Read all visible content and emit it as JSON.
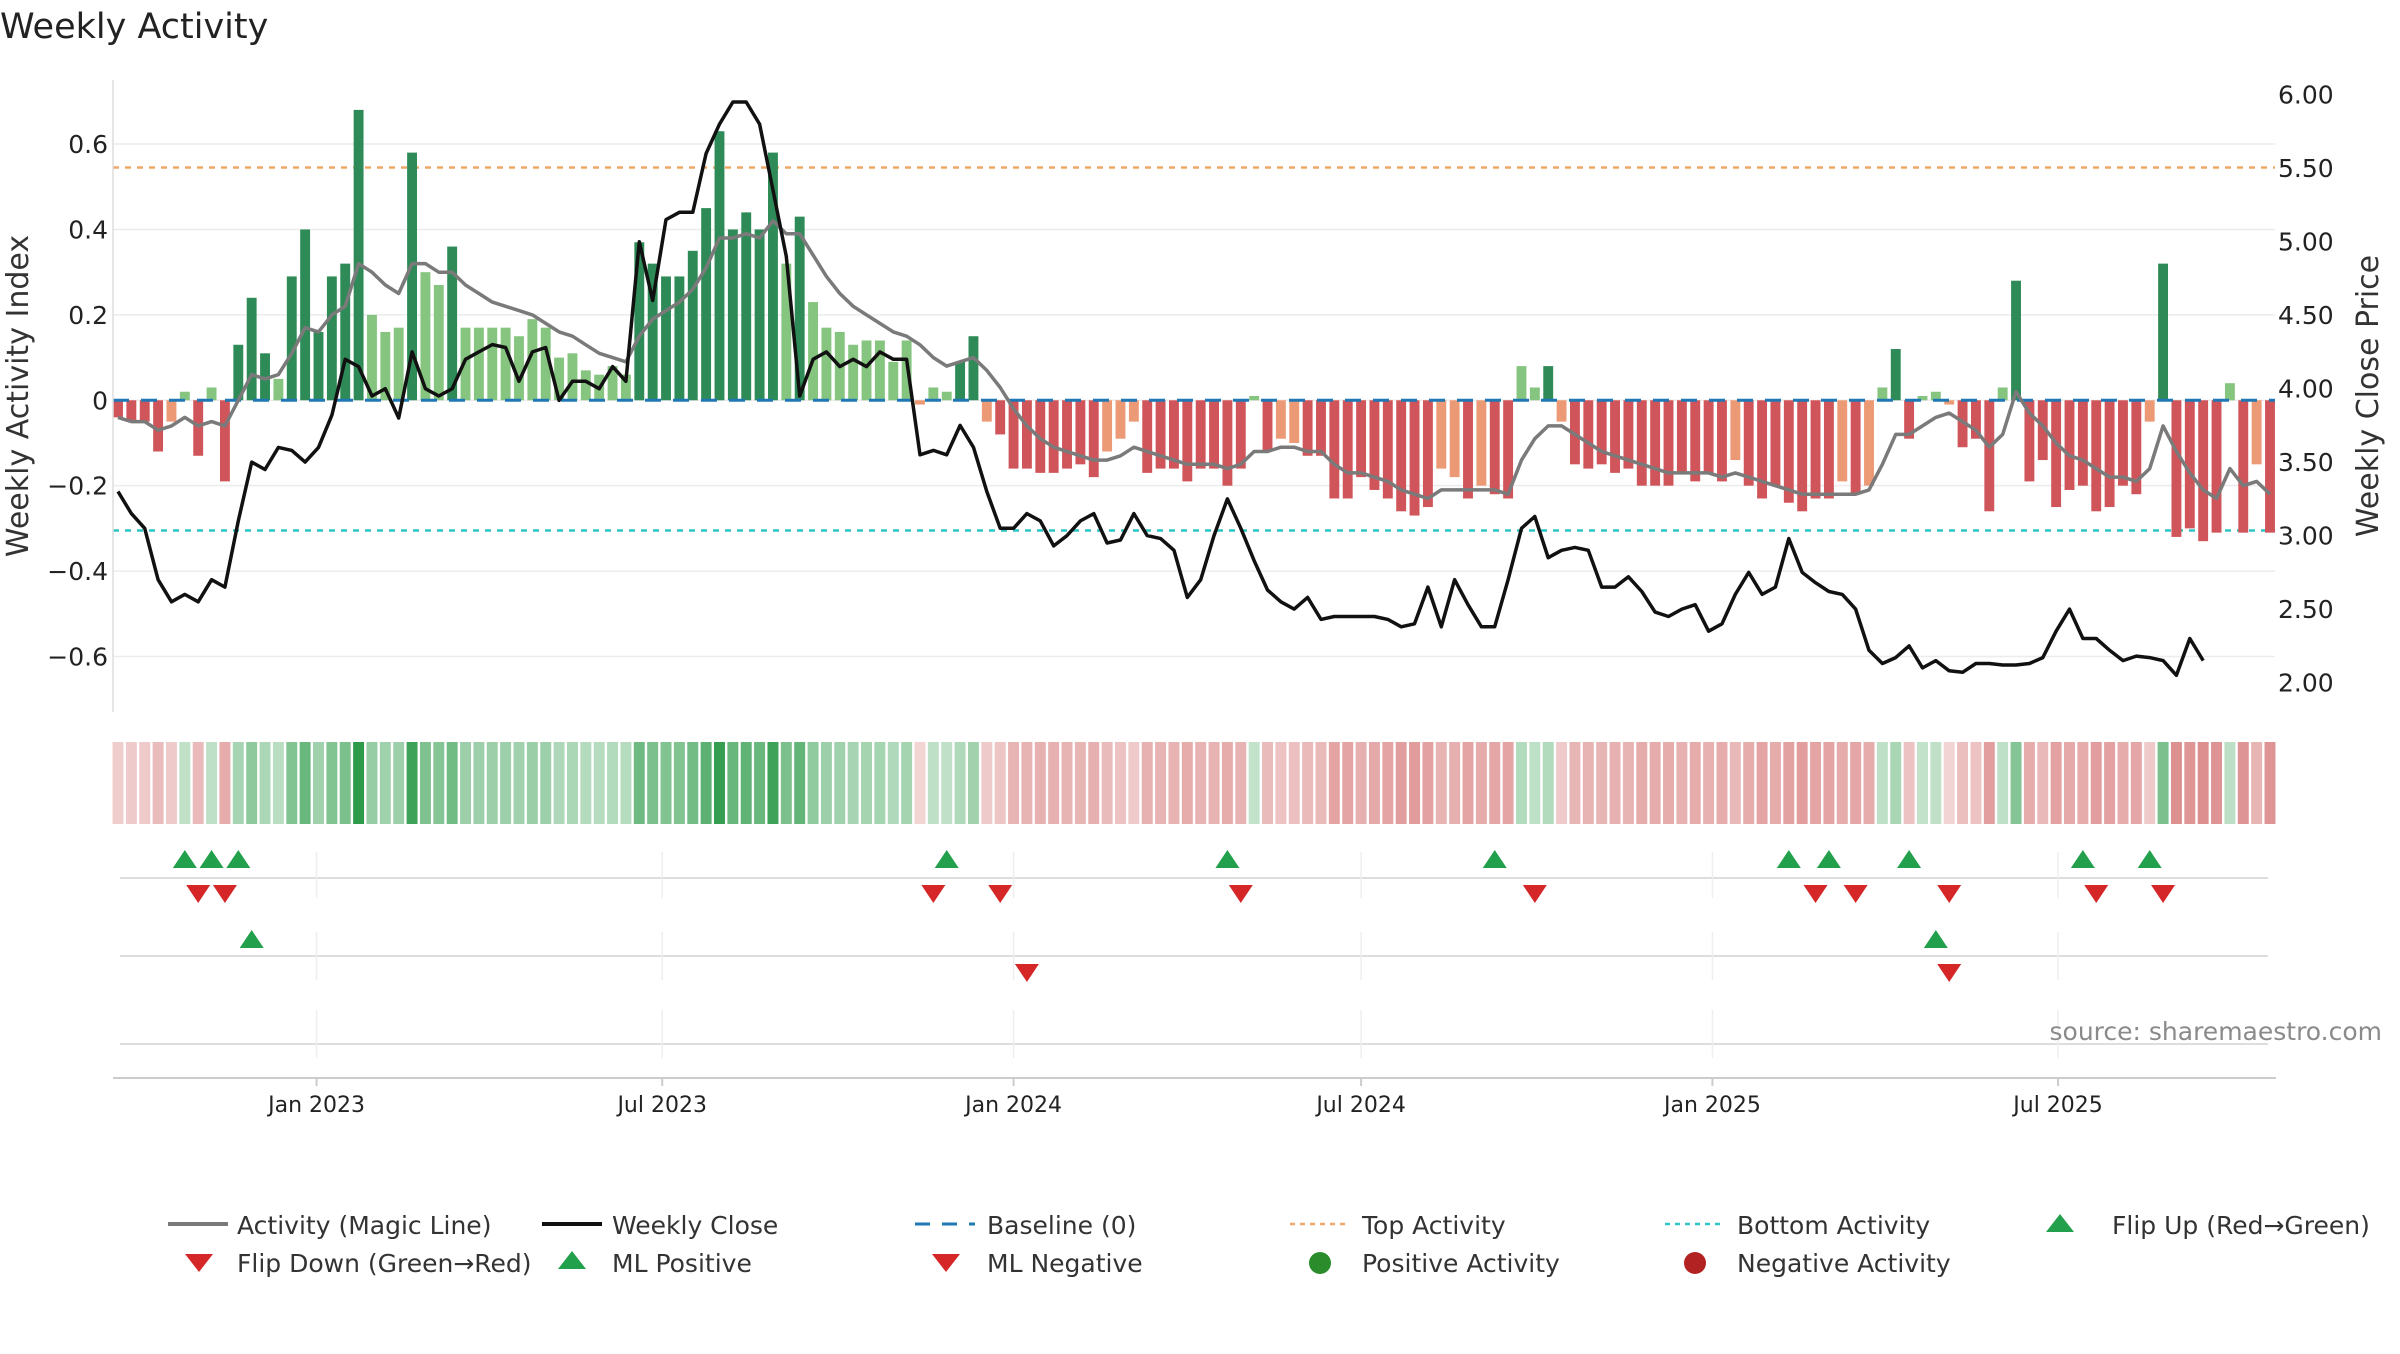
{
  "title": "Weekly Activity",
  "source": "source: sharemaestro.com",
  "colors": {
    "pos_strong": "#2e8b57",
    "pos_light": "#86c57f",
    "neg_strong": "#d0555a",
    "neg_light": "#ec9a76",
    "magic": "#7a7a7a",
    "close": "#111111",
    "baseline": "#1f77b4",
    "top": "#f0a868",
    "bottom": "#2ec4c4",
    "up": "#22a04b",
    "down": "#d62728"
  },
  "chart_data": {
    "type": "bar+line",
    "title": "Weekly Activity",
    "ylabel_left": "Weekly Activity Index",
    "ylabel_right": "Weekly Close Price",
    "ylim_left": [
      -0.73,
      0.75
    ],
    "yticks_left": [
      0.6,
      0.4,
      0.2,
      0,
      -0.2,
      -0.4,
      -0.6
    ],
    "ytick_labels_left": [
      "0.6",
      "0.4",
      "0.2",
      "0",
      "−0.2",
      "−0.4",
      "−0.6"
    ],
    "ylim_right": [
      1.8,
      6.1
    ],
    "yticks_right": [
      6.0,
      5.5,
      5.0,
      4.5,
      4.0,
      3.5,
      3.0,
      2.5,
      2.0
    ],
    "ytick_labels_right": [
      "6.00",
      "5.50",
      "5.00",
      "4.50",
      "4.00",
      "3.50",
      "3.00",
      "2.50",
      "2.00"
    ],
    "x_start": "2022-09-19",
    "x_step_days": 7,
    "x_ticks": [
      {
        "date": "2023-01-01",
        "label": "Jan 2023"
      },
      {
        "date": "2023-07-01",
        "label": "Jul 2023"
      },
      {
        "date": "2024-01-01",
        "label": "Jan 2024"
      },
      {
        "date": "2024-07-01",
        "label": "Jul 2024"
      },
      {
        "date": "2025-01-01",
        "label": "Jan 2025"
      },
      {
        "date": "2025-07-01",
        "label": "Jul 2025"
      }
    ],
    "top_activity": 0.545,
    "bottom_activity": -0.305,
    "baseline": 0,
    "activity": [
      -0.04,
      -0.05,
      -0.05,
      -0.12,
      -0.05,
      0.02,
      -0.13,
      0.03,
      -0.19,
      0.13,
      0.24,
      0.11,
      0.05,
      0.29,
      0.4,
      0.16,
      0.29,
      0.32,
      0.68,
      0.2,
      0.16,
      0.17,
      0.58,
      0.3,
      0.27,
      0.36,
      0.17,
      0.17,
      0.17,
      0.17,
      0.15,
      0.19,
      0.17,
      0.1,
      0.11,
      0.07,
      0.06,
      0.08,
      0.06,
      0.37,
      0.32,
      0.29,
      0.29,
      0.35,
      0.45,
      0.63,
      0.4,
      0.44,
      0.4,
      0.58,
      0.32,
      0.43,
      0.23,
      0.17,
      0.16,
      0.13,
      0.14,
      0.14,
      0.09,
      0.14,
      -0.01,
      0.03,
      0.02,
      0.09,
      0.15,
      -0.05,
      -0.08,
      -0.16,
      -0.16,
      -0.17,
      -0.17,
      -0.16,
      -0.15,
      -0.18,
      -0.12,
      -0.09,
      -0.05,
      -0.17,
      -0.16,
      -0.16,
      -0.19,
      -0.16,
      -0.16,
      -0.2,
      -0.16,
      0.01,
      -0.12,
      -0.09,
      -0.1,
      -0.13,
      -0.13,
      -0.23,
      -0.23,
      -0.18,
      -0.21,
      -0.23,
      -0.26,
      -0.27,
      -0.25,
      -0.16,
      -0.18,
      -0.23,
      -0.2,
      -0.22,
      -0.23,
      0.08,
      0.03,
      0.08,
      -0.05,
      -0.15,
      -0.16,
      -0.15,
      -0.17,
      -0.16,
      -0.2,
      -0.2,
      -0.2,
      -0.17,
      -0.19,
      -0.17,
      -0.19,
      -0.14,
      -0.2,
      -0.23,
      -0.2,
      -0.24,
      -0.26,
      -0.23,
      -0.23,
      -0.19,
      -0.22,
      -0.2,
      0.03,
      0.12,
      -0.09,
      0.01,
      0.02,
      -0.01,
      -0.11,
      -0.09,
      -0.26,
      0.03,
      0.28,
      -0.19,
      -0.14,
      -0.25,
      -0.21,
      -0.2,
      -0.26,
      -0.25,
      -0.2,
      -0.22,
      -0.05,
      0.32,
      -0.32,
      -0.3,
      -0.33,
      -0.31,
      0.04,
      -0.31,
      -0.15,
      -0.31
    ],
    "magic_line": [
      -0.04,
      -0.05,
      -0.05,
      -0.07,
      -0.06,
      -0.04,
      -0.06,
      -0.05,
      -0.06,
      0.0,
      0.06,
      0.05,
      0.06,
      0.11,
      0.17,
      0.16,
      0.2,
      0.22,
      0.32,
      0.3,
      0.27,
      0.25,
      0.32,
      0.32,
      0.3,
      0.3,
      0.27,
      0.25,
      0.23,
      0.22,
      0.21,
      0.2,
      0.18,
      0.16,
      0.15,
      0.13,
      0.11,
      0.1,
      0.09,
      0.15,
      0.19,
      0.21,
      0.23,
      0.26,
      0.31,
      0.38,
      0.38,
      0.39,
      0.38,
      0.42,
      0.39,
      0.39,
      0.34,
      0.29,
      0.25,
      0.22,
      0.2,
      0.18,
      0.16,
      0.15,
      0.13,
      0.1,
      0.08,
      0.09,
      0.1,
      0.07,
      0.03,
      -0.02,
      -0.06,
      -0.09,
      -0.11,
      -0.12,
      -0.13,
      -0.14,
      -0.14,
      -0.13,
      -0.11,
      -0.12,
      -0.13,
      -0.14,
      -0.15,
      -0.15,
      -0.15,
      -0.16,
      -0.15,
      -0.12,
      -0.12,
      -0.11,
      -0.11,
      -0.12,
      -0.12,
      -0.15,
      -0.17,
      -0.17,
      -0.18,
      -0.19,
      -0.21,
      -0.22,
      -0.23,
      -0.21,
      -0.21,
      -0.21,
      -0.21,
      -0.21,
      -0.22,
      -0.14,
      -0.09,
      -0.06,
      -0.06,
      -0.08,
      -0.1,
      -0.12,
      -0.13,
      -0.14,
      -0.15,
      -0.16,
      -0.17,
      -0.17,
      -0.17,
      -0.17,
      -0.18,
      -0.17,
      -0.18,
      -0.19,
      -0.2,
      -0.21,
      -0.22,
      -0.22,
      -0.22,
      -0.22,
      -0.22,
      -0.21,
      -0.15,
      -0.08,
      -0.08,
      -0.06,
      -0.04,
      -0.03,
      -0.05,
      -0.07,
      -0.11,
      -0.08,
      0.02,
      -0.03,
      -0.06,
      -0.1,
      -0.13,
      -0.14,
      -0.16,
      -0.18,
      -0.18,
      -0.19,
      -0.16,
      -0.06,
      -0.12,
      -0.17,
      -0.21,
      -0.23,
      -0.16,
      -0.2,
      -0.19,
      -0.22
    ],
    "weekly_close": [
      3.3,
      3.15,
      3.05,
      2.7,
      2.55,
      2.6,
      2.55,
      2.7,
      2.65,
      3.1,
      3.5,
      3.45,
      3.6,
      3.58,
      3.5,
      3.6,
      3.82,
      4.2,
      4.15,
      3.95,
      4.0,
      3.8,
      4.25,
      4.0,
      3.95,
      4.0,
      4.2,
      4.25,
      4.3,
      4.28,
      4.05,
      4.25,
      4.28,
      3.92,
      4.05,
      4.05,
      4.0,
      4.15,
      4.05,
      5.0,
      4.6,
      5.15,
      5.2,
      5.2,
      5.6,
      5.8,
      5.95,
      5.95,
      5.8,
      5.35,
      4.9,
      3.95,
      4.2,
      4.25,
      4.15,
      4.2,
      4.15,
      4.25,
      4.2,
      4.2,
      3.55,
      3.58,
      3.55,
      3.75,
      3.6,
      3.3,
      3.05,
      3.05,
      3.15,
      3.1,
      2.93,
      3.0,
      3.1,
      3.15,
      2.95,
      2.97,
      3.15,
      3.0,
      2.98,
      2.9,
      2.58,
      2.7,
      3.0,
      3.25,
      3.05,
      2.83,
      2.63,
      2.55,
      2.5,
      2.58,
      2.43,
      2.45,
      2.45,
      2.45,
      2.45,
      2.43,
      2.38,
      2.4,
      2.65,
      2.38,
      2.7,
      2.53,
      2.38,
      2.38,
      2.7,
      3.05,
      3.13,
      2.85,
      2.9,
      2.92,
      2.9,
      2.65,
      2.65,
      2.72,
      2.62,
      2.48,
      2.45,
      2.5,
      2.53,
      2.35,
      2.4,
      2.6,
      2.75,
      2.6,
      2.65,
      2.98,
      2.75,
      2.68,
      2.62,
      2.6,
      2.5,
      2.22,
      2.13,
      2.17,
      2.25,
      2.1,
      2.15,
      2.08,
      2.07,
      2.13,
      2.13,
      2.12,
      2.12,
      2.13,
      2.17,
      2.35,
      2.5,
      2.3,
      2.3,
      2.22,
      2.15,
      2.18,
      2.17,
      2.15,
      2.05,
      2.3,
      2.15
    ]
  },
  "flip_up_idx": [
    5,
    7,
    9,
    62,
    83,
    103,
    125,
    128,
    134,
    147,
    152
  ],
  "flip_down_idx": [
    6,
    8,
    61,
    66,
    84,
    106,
    127,
    130,
    137,
    148,
    153
  ],
  "ml_positive_idx": [
    10,
    136
  ],
  "ml_negative_idx": [
    68,
    137
  ],
  "legend": {
    "magic": "Activity (Magic Line)",
    "close": "Weekly Close",
    "baseline": "Baseline (0)",
    "top": "Top Activity",
    "bottom": "Bottom Activity",
    "flip_up": "Flip Up (Red→Green)",
    "flip_down": "Flip Down (Green→Red)",
    "ml_pos": "ML Positive",
    "ml_neg": "ML Negative",
    "pos_act": "Positive Activity",
    "neg_act": "Negative Activity"
  }
}
